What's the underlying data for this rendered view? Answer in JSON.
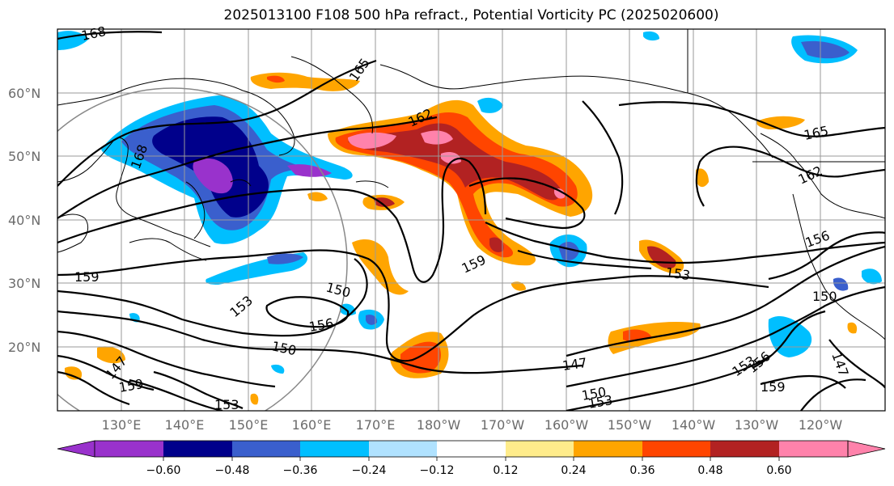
{
  "title": "2025013100 F108 500 hPa refract., Potential Vorticity PC (2025020600)",
  "lat_labels": [
    "60°N",
    "50°N",
    "40°N",
    "30°N",
    "20°N"
  ],
  "lon_labels": [
    "130°E",
    "140°E",
    "150°E",
    "160°E",
    "170°E",
    "180°W",
    "170°W",
    "160°W",
    "150°W",
    "140°W",
    "130°W",
    "120°W"
  ],
  "contour_labels": [
    "168",
    "165",
    "162",
    "168",
    "165",
    "162",
    "159",
    "156",
    "153",
    "150",
    "147",
    "159",
    "150",
    "153",
    "156",
    "150",
    "147",
    "159",
    "153",
    "150",
    "156",
    "159",
    "153",
    "147",
    "153"
  ],
  "colorbar": {
    "ticks": [
      "−0.60",
      "−0.48",
      "−0.36",
      "−0.24",
      "−0.12",
      "0.12",
      "0.24",
      "0.36",
      "0.48",
      "0.60"
    ],
    "colors": [
      "#9932cc",
      "#00008b",
      "#3a5fcd",
      "#00bfff",
      "#b0e2ff",
      "#ffffff",
      "#ffec8b",
      "#ffa500",
      "#ff4500",
      "#b22222",
      "#ff82ab"
    ]
  }
}
